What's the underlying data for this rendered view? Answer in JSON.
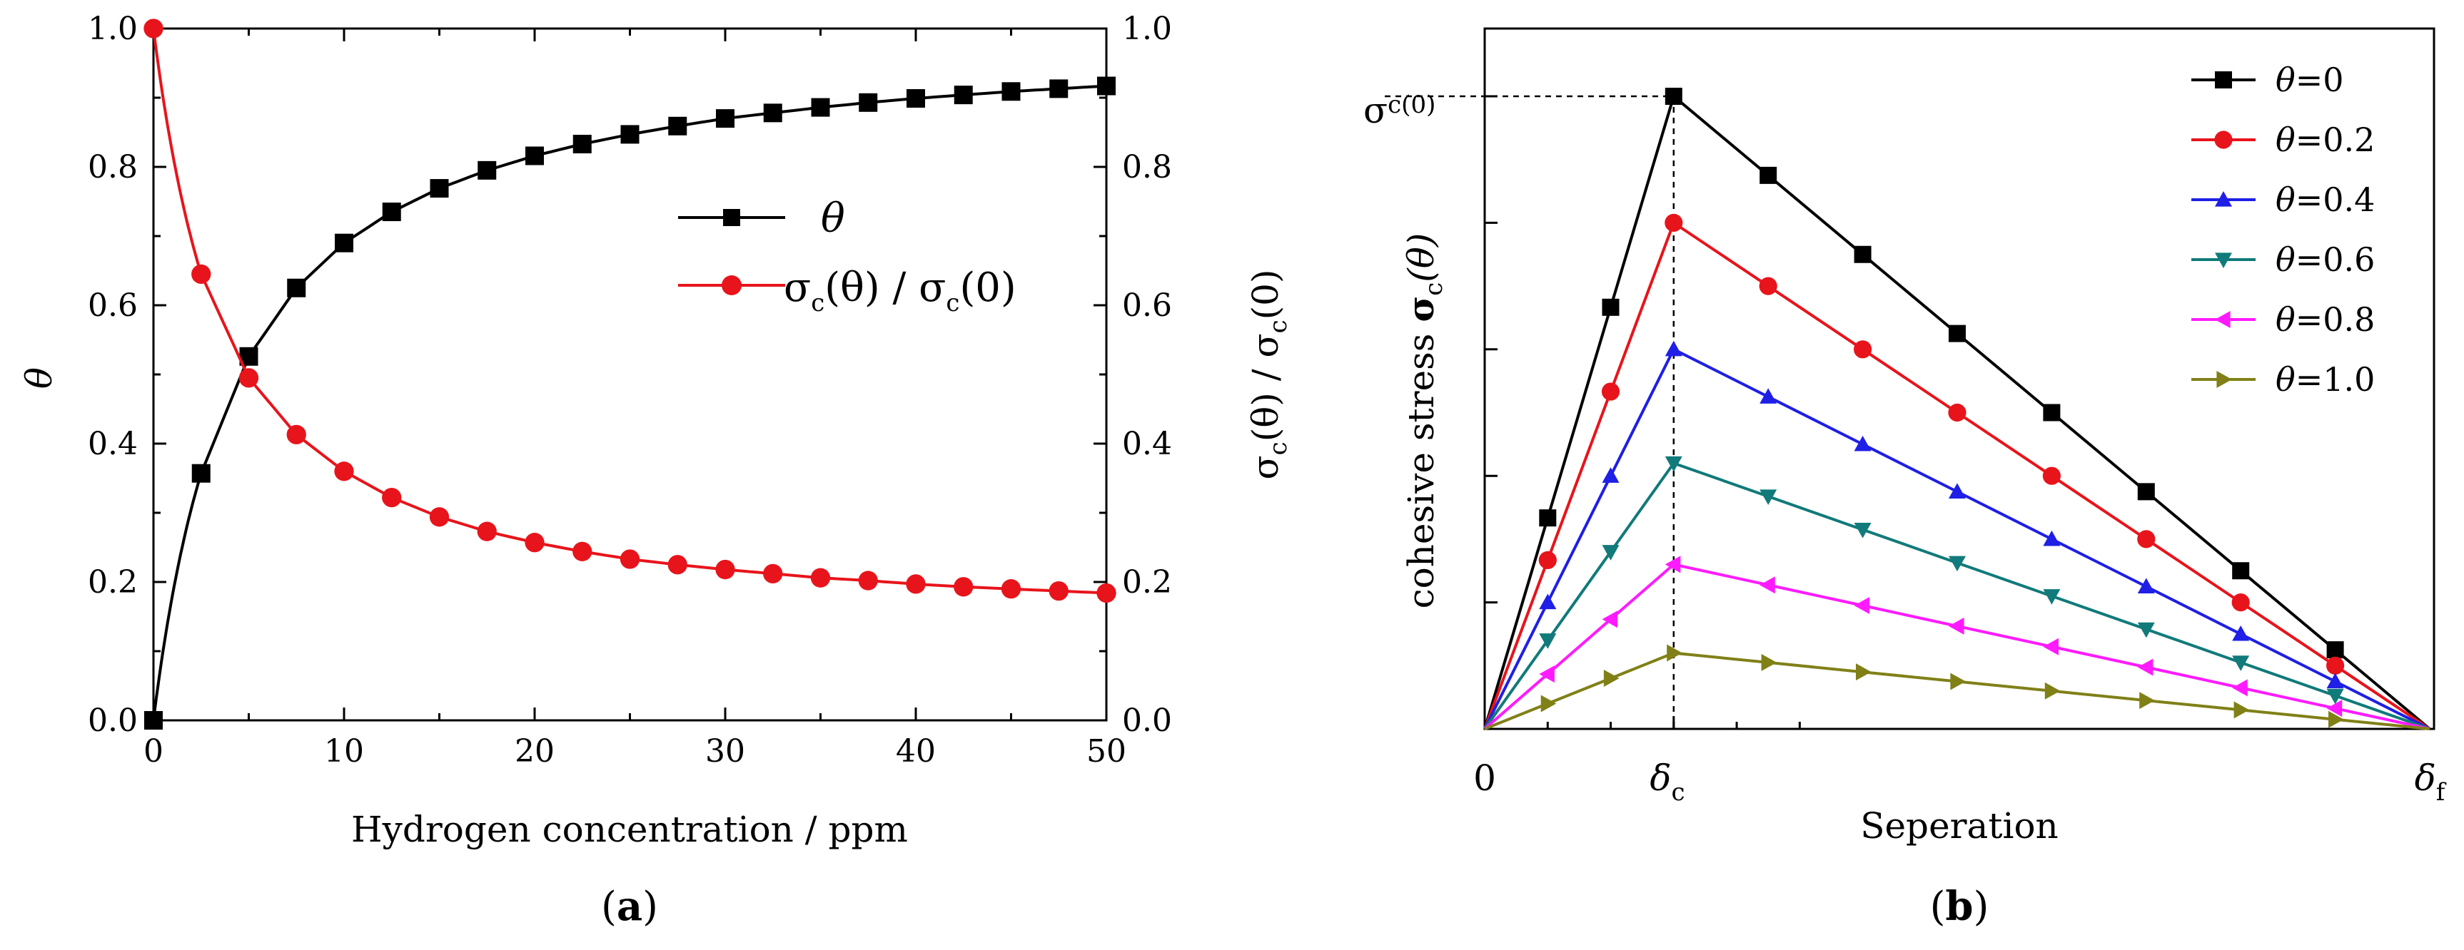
{
  "chart_data": [
    {
      "id": "a",
      "type": "line",
      "caption_paren_open": "(",
      "caption_label": "a",
      "caption_paren_close": ")",
      "xlabel": "Hydrogen concentration / ppm",
      "ylabel": "θ",
      "ylabel_right": "σc(θ) / σc(0)",
      "ylabel_right_parts": {
        "base": "σ",
        "sub1": "c",
        "mid": "(θ) / σ",
        "sub2": "c",
        "tail": "(0)"
      },
      "xlim": [
        0,
        50
      ],
      "ylim": [
        0,
        1.0
      ],
      "x_ticks": [
        "0",
        "10",
        "20",
        "30",
        "40",
        "50"
      ],
      "y_ticks": [
        "0.0",
        "0.2",
        "0.4",
        "0.6",
        "0.8",
        "1.0"
      ],
      "y_ticks_right": [
        "0.0",
        "0.2",
        "0.4",
        "0.6",
        "0.8",
        "1.0"
      ],
      "legend_position": "upper-right",
      "series": [
        {
          "name": "θ",
          "color": "#000000",
          "marker": "square",
          "x": [
            0,
            2.5,
            5,
            7.5,
            10,
            12.5,
            15,
            17.5,
            20,
            22.5,
            25,
            27.5,
            30,
            32.5,
            35,
            37.5,
            40,
            42.5,
            45,
            47.5,
            50
          ],
          "values": [
            0.0,
            0.357,
            0.526,
            0.625,
            0.69,
            0.735,
            0.769,
            0.795,
            0.816,
            0.833,
            0.847,
            0.859,
            0.87,
            0.878,
            0.886,
            0.893,
            0.899,
            0.904,
            0.909,
            0.913,
            0.917
          ]
        },
        {
          "name_parts": {
            "base": "σ",
            "sub1": "c",
            "mid": "(θ) / σ",
            "sub2": "c",
            "tail": "(0)"
          },
          "name": "σc(θ) / σc(0)",
          "color": "#e8141b",
          "marker": "circle",
          "x": [
            0,
            2.5,
            5,
            7.5,
            10,
            12.5,
            15,
            17.5,
            20,
            22.5,
            25,
            27.5,
            30,
            32.5,
            35,
            37.5,
            40,
            42.5,
            45,
            47.5,
            50
          ],
          "values": [
            1.0,
            0.645,
            0.495,
            0.413,
            0.36,
            0.322,
            0.294,
            0.273,
            0.257,
            0.244,
            0.233,
            0.225,
            0.218,
            0.212,
            0.206,
            0.202,
            0.197,
            0.193,
            0.19,
            0.187,
            0.184
          ]
        }
      ]
    },
    {
      "id": "b",
      "type": "line",
      "caption_paren_open": "(",
      "caption_label": "b",
      "caption_paren_close": ")",
      "xlabel": "Seperation",
      "ylabel": "cohesive stress σc(θ)",
      "ylabel_parts": {
        "pre": "cohesive stress ",
        "bold": "σ",
        "sub": "c",
        "tail": "(θ)"
      },
      "x_tick_labels": {
        "zero": "0",
        "delta_c": "δ",
        "delta_c_sub": "c",
        "delta_f": "δ",
        "delta_f_sub": "f"
      },
      "y_peak_label": {
        "base": "σ",
        "sub": "c(0)"
      },
      "xlim": [
        0,
        10
      ],
      "ylim": [
        0,
        1.0
      ],
      "peak_x": 2,
      "legend_position": "top-right",
      "x": [
        0,
        0.667,
        1.333,
        2,
        3,
        4,
        5,
        6,
        7,
        8,
        9,
        10
      ],
      "series": [
        {
          "name_theta": "θ",
          "name_value": "=0",
          "name": "θ=0",
          "color": "#000000",
          "marker": "square",
          "scale": 1.0
        },
        {
          "name_theta": "θ",
          "name_value": "=0.2",
          "name": "θ=0.2",
          "color": "#e8141b",
          "marker": "circle",
          "scale": 0.8
        },
        {
          "name_theta": "θ",
          "name_value": "=0.4",
          "name": "θ=0.4",
          "color": "#1f1fe6",
          "marker": "triangle-up",
          "scale": 0.6
        },
        {
          "name_theta": "θ",
          "name_value": "=0.6",
          "name": "θ=0.6",
          "color": "#117a7a",
          "marker": "triangle-down",
          "scale": 0.42
        },
        {
          "name_theta": "θ",
          "name_value": "=0.8",
          "name": "θ=0.8",
          "color": "#ff1aff",
          "marker": "triangle-left",
          "scale": 0.26
        },
        {
          "name_theta": "θ",
          "name_value": "=1.0",
          "name": "θ=1.0",
          "color": "#808017",
          "marker": "triangle-right",
          "scale": 0.12
        }
      ]
    }
  ]
}
